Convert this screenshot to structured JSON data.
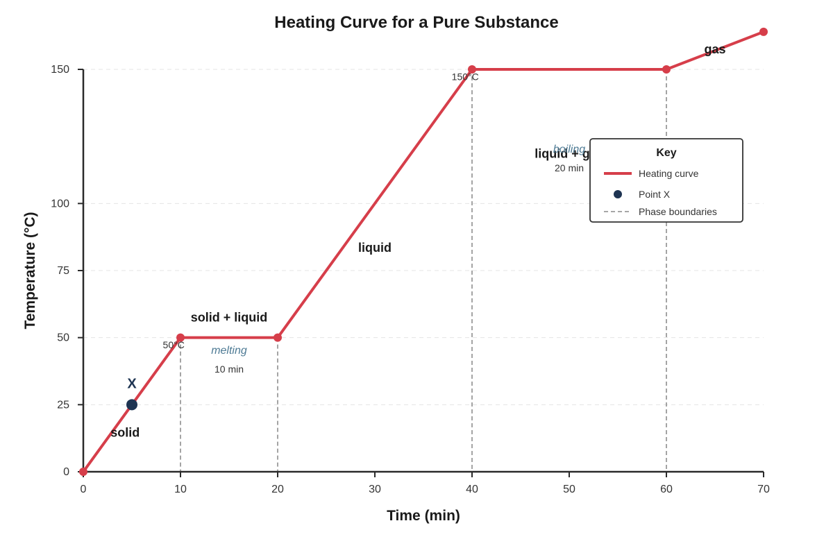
{
  "chart_data": {
    "type": "line",
    "title": "Heating Curve for a Pure Substance",
    "xlabel": "Time (min)",
    "ylabel": "Temperature (°C)",
    "xlim": [
      0,
      70
    ],
    "ylim": [
      0,
      150
    ],
    "x_ticks": [
      0,
      10,
      20,
      30,
      40,
      50,
      60,
      70
    ],
    "y_ticks": [
      0,
      25,
      50,
      75,
      100,
      150
    ],
    "grid": "horizontal dashed",
    "series": [
      {
        "name": "Heating curve",
        "color": "#d63e4a",
        "x": [
          0,
          10,
          20,
          40,
          60,
          70
        ],
        "y": [
          0,
          50,
          50,
          150,
          150,
          164
        ]
      }
    ],
    "phase_boundaries_x": [
      10,
      20,
      40,
      60
    ],
    "phase_labels": [
      {
        "text": "solid",
        "x": 4.3,
        "y": 13
      },
      {
        "text": "solid + liquid",
        "x": 15,
        "y": 56
      },
      {
        "text": "liquid",
        "x": 30,
        "y": 82
      },
      {
        "text": "liquid + gas",
        "x": 50,
        "y": 117
      },
      {
        "text": "gas",
        "x": 65,
        "y": 156
      }
    ],
    "process_labels": [
      {
        "text": "melting",
        "x": 15,
        "y": 44
      },
      {
        "text": "boiling",
        "x": 50,
        "y": 119
      }
    ],
    "duration_labels": [
      {
        "text": "10 min",
        "x": 15,
        "y": 37
      },
      {
        "text": "20 min",
        "x": 50,
        "y": 112
      }
    ],
    "temperature_labels": [
      {
        "text": "50°C",
        "x": 9.3,
        "y": 46
      },
      {
        "text": "150°C",
        "x": 39.3,
        "y": 146
      }
    ],
    "point_x": {
      "label": "X",
      "x": 5,
      "y": 25,
      "color": "#1e3452"
    },
    "legend": {
      "placement": "upper-right",
      "title": "Key",
      "entries": [
        {
          "text": "Heating curve",
          "kind": "line",
          "color": "#d63e4a"
        },
        {
          "text": "Point X",
          "kind": "dot",
          "color": "#1e3452"
        },
        {
          "text": "Phase boundaries",
          "kind": "dashed",
          "color": "#9a9a9a"
        }
      ]
    }
  }
}
